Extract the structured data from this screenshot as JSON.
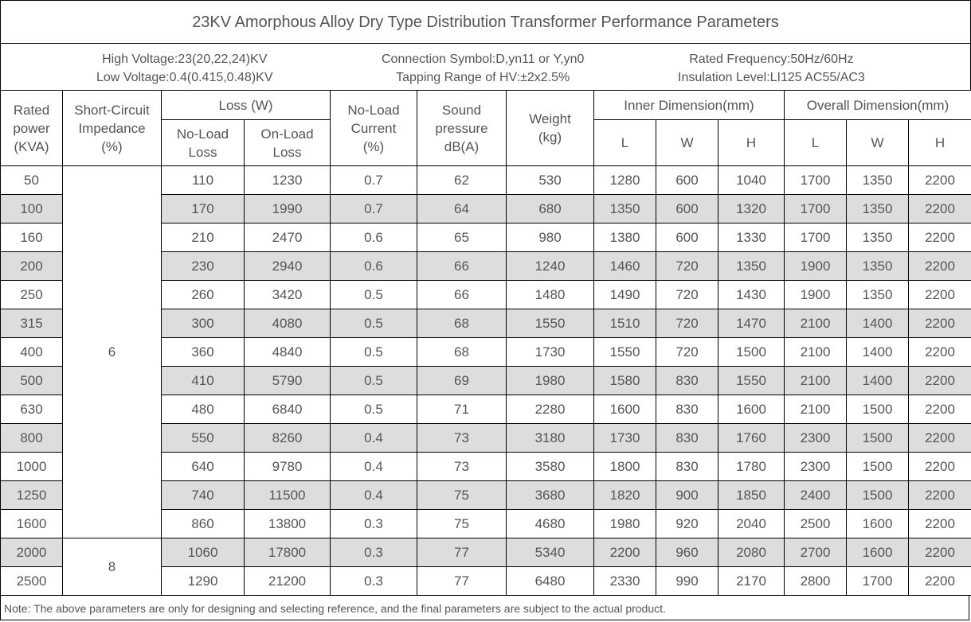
{
  "title": "23KV Amorphous Alloy Dry Type Distribution Transformer Performance Parameters",
  "info": {
    "high_voltage": "High Voltage:23(20,22,24)KV",
    "low_voltage": "Low Voltage:0.4(0.415,0.48)KV",
    "connection_symbol": "Connection Symbol:D,yn11 or Y,yn0",
    "tapping_range": "Tapping Range of HV:±2x2.5%",
    "rated_frequency": "Rated Frequency:50Hz/60Hz",
    "insulation_level": "Insulation Level:LI125 AC55/AC3"
  },
  "headers": {
    "rated_power": [
      "Rated",
      "power",
      "(KVA)"
    ],
    "impedance": [
      "Short-Circuit",
      "Impedance",
      "(%)"
    ],
    "loss": "Loss (W)",
    "no_load_loss": [
      "No-Load",
      "Loss"
    ],
    "on_load_loss": [
      "On-Load",
      "Loss"
    ],
    "no_load_current": [
      "No-Load",
      "Current",
      "(%)"
    ],
    "sound": [
      "Sound",
      "pressure",
      "dB(A)"
    ],
    "weight": [
      "Weight",
      "(kg)"
    ],
    "inner_dimension": "Inner Dimension(mm)",
    "overall_dimension": "Overall Dimension(mm)",
    "dim_l": "L",
    "dim_w": "W",
    "dim_h": "H"
  },
  "impedance_groups": [
    {
      "value": "6",
      "rows": 13
    },
    {
      "value": "8",
      "rows": 2
    }
  ],
  "rows": [
    [
      "50",
      "110",
      "1230",
      "0.7",
      "62",
      "530",
      "1280",
      "600",
      "1040",
      "1700",
      "1350",
      "2200"
    ],
    [
      "100",
      "170",
      "1990",
      "0.7",
      "64",
      "680",
      "1350",
      "600",
      "1320",
      "1700",
      "1350",
      "2200"
    ],
    [
      "160",
      "210",
      "2470",
      "0.6",
      "65",
      "980",
      "1380",
      "600",
      "1330",
      "1700",
      "1350",
      "2200"
    ],
    [
      "200",
      "230",
      "2940",
      "0.6",
      "66",
      "1240",
      "1460",
      "720",
      "1350",
      "1900",
      "1350",
      "2200"
    ],
    [
      "250",
      "260",
      "3420",
      "0.5",
      "66",
      "1480",
      "1490",
      "720",
      "1430",
      "1900",
      "1350",
      "2200"
    ],
    [
      "315",
      "300",
      "4080",
      "0.5",
      "68",
      "1550",
      "1510",
      "720",
      "1470",
      "2100",
      "1400",
      "2200"
    ],
    [
      "400",
      "360",
      "4840",
      "0.5",
      "68",
      "1730",
      "1550",
      "720",
      "1500",
      "2100",
      "1400",
      "2200"
    ],
    [
      "500",
      "410",
      "5790",
      "0.5",
      "69",
      "1980",
      "1580",
      "830",
      "1550",
      "2100",
      "1400",
      "2200"
    ],
    [
      "630",
      "480",
      "6840",
      "0.5",
      "71",
      "2280",
      "1600",
      "830",
      "1600",
      "2100",
      "1500",
      "2200"
    ],
    [
      "800",
      "550",
      "8260",
      "0.4",
      "73",
      "3180",
      "1730",
      "830",
      "1760",
      "2300",
      "1500",
      "2200"
    ],
    [
      "1000",
      "640",
      "9780",
      "0.4",
      "73",
      "3580",
      "1800",
      "830",
      "1780",
      "2300",
      "1500",
      "2200"
    ],
    [
      "1250",
      "740",
      "11500",
      "0.4",
      "75",
      "3680",
      "1820",
      "900",
      "1850",
      "2400",
      "1500",
      "2200"
    ],
    [
      "1600",
      "860",
      "13800",
      "0.3",
      "75",
      "4680",
      "1980",
      "920",
      "2040",
      "2500",
      "1600",
      "2200"
    ],
    [
      "2000",
      "1060",
      "17800",
      "0.3",
      "77",
      "5340",
      "2200",
      "960",
      "2080",
      "2700",
      "1600",
      "2200"
    ],
    [
      "2500",
      "1290",
      "21200",
      "0.3",
      "77",
      "6480",
      "2330",
      "990",
      "2170",
      "2800",
      "1700",
      "2200"
    ]
  ],
  "note": "Note: The above parameters are only for designing and selecting  reference, and the final parameters are subject to the actual product.",
  "colors": {
    "shaded_row": "#dddddd",
    "text": "#555555",
    "border": "#000000"
  }
}
